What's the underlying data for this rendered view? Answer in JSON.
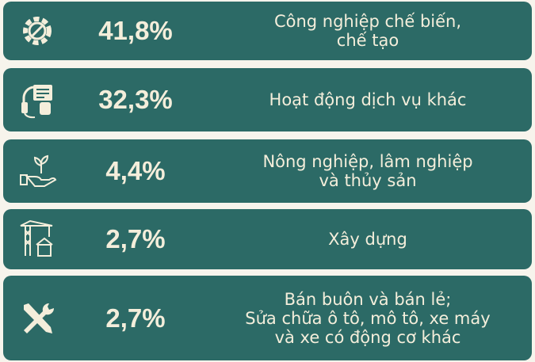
{
  "items": [
    {
      "value": "41,8%",
      "label": [
        "Công nghiệp chế biến,",
        "chế  tạo"
      ]
    },
    {
      "value": "32,3%",
      "label": [
        "Hoạt động dịch vụ khác"
      ]
    },
    {
      "value": "4,4%",
      "label": [
        "Nông nghiệp, lâm nghiệp",
        "và thủy sản"
      ]
    },
    {
      "value": "2,7%",
      "label": [
        "Xây dựng"
      ]
    },
    {
      "value": "2,7%",
      "label": [
        "Bán buôn và bán lẻ;",
        "Sửa chữa ô tô, mô tô, xe máy",
        "và xe có động cơ khác"
      ]
    }
  ]
}
